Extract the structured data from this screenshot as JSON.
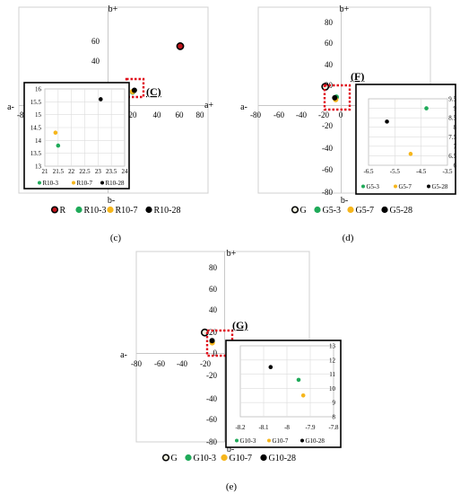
{
  "colors": {
    "R": "#c0141c",
    "G": "#f0f0e0",
    "day3": "#1faa59",
    "day7": "#f6b61c",
    "day28": "#000000",
    "callout": "#e0101c"
  },
  "chart_data": [
    {
      "id": "c",
      "type": "scatter",
      "caption": "(c)",
      "callout": "(C)",
      "axis_labels": {
        "top": "b+",
        "bottom": "b-",
        "left": "a-",
        "right": "a+"
      },
      "xlim": [
        -80,
        80
      ],
      "ylim": [
        -80,
        80
      ],
      "x_ticks": [
        "-80",
        "20",
        "40",
        "60",
        "80"
      ],
      "y_ticks": [
        "60",
        "40"
      ],
      "series": [
        {
          "name": "R",
          "key": "R",
          "x": [
            64
          ],
          "y": [
            58
          ]
        },
        {
          "name": "R10-3",
          "key": "day3",
          "x": [
            21.5
          ],
          "y": [
            13.8
          ]
        },
        {
          "name": "R10-7",
          "key": "day7",
          "x": [
            21.4
          ],
          "y": [
            14.3
          ]
        },
        {
          "name": "R10-28",
          "key": "day28",
          "x": [
            23.1
          ],
          "y": [
            15.6
          ]
        }
      ],
      "inset": {
        "xlim": [
          21,
          24
        ],
        "ylim": [
          13,
          16
        ],
        "x_ticks": [
          "21",
          "21.5",
          "22",
          "22.5",
          "23",
          "23.5",
          "24"
        ],
        "y_ticks": [
          "16",
          "15.5",
          "15",
          "14.5",
          "14",
          "13.5",
          "13"
        ],
        "series": [
          {
            "name": "R10-3",
            "key": "day3",
            "x": [
              21.5
            ],
            "y": [
              13.8
            ]
          },
          {
            "name": "R10-7",
            "key": "day7",
            "x": [
              21.4
            ],
            "y": [
              14.3
            ]
          },
          {
            "name": "R10-28",
            "key": "day28",
            "x": [
              23.1
            ],
            "y": [
              15.6
            ]
          }
        ]
      }
    },
    {
      "id": "d",
      "type": "scatter",
      "caption": "(d)",
      "callout": "(F)",
      "axis_labels": {
        "top": "b+",
        "bottom": "b-",
        "left": "a-",
        "right": ""
      },
      "xlim": [
        -80,
        80
      ],
      "ylim": [
        -80,
        80
      ],
      "x_ticks": [
        "-80",
        "-60",
        "-40",
        "-20",
        "0"
      ],
      "y_ticks": [
        "80",
        "60",
        "40",
        "20",
        "-20",
        "-40",
        "-60",
        "-80"
      ],
      "series": [
        {
          "name": "G",
          "key": "G",
          "x": [
            -15
          ],
          "y": [
            19
          ]
        },
        {
          "name": "G5-3",
          "key": "day3",
          "x": [
            -4.3
          ],
          "y": [
            9
          ]
        },
        {
          "name": "G5-7",
          "key": "day7",
          "x": [
            -4.9
          ],
          "y": [
            6.6
          ]
        },
        {
          "name": "G5-28",
          "key": "day28",
          "x": [
            -5.8
          ],
          "y": [
            8.3
          ]
        }
      ],
      "inset": {
        "xlim": [
          -6.5,
          -3.5
        ],
        "ylim": [
          6,
          9.5
        ],
        "x_ticks": [
          "-6.5",
          "-5.5",
          "-4.5",
          "-3.5"
        ],
        "y_ticks": [
          "9.5",
          "9",
          "8.5",
          "8",
          "7.5",
          "7",
          "6.5",
          "6"
        ],
        "series": [
          {
            "name": "G5-3",
            "key": "day3",
            "x": [
              -4.3
            ],
            "y": [
              9
            ]
          },
          {
            "name": "G5-7",
            "key": "day7",
            "x": [
              -4.9
            ],
            "y": [
              6.6
            ]
          },
          {
            "name": "G5-28",
            "key": "day28",
            "x": [
              -5.8
            ],
            "y": [
              8.3
            ]
          }
        ]
      }
    },
    {
      "id": "e",
      "type": "scatter",
      "caption": "(e)",
      "callout": "(G)",
      "axis_labels": {
        "top": "b+",
        "bottom": "b-",
        "left": "a-",
        "right": ""
      },
      "xlim": [
        -80,
        80
      ],
      "ylim": [
        -80,
        80
      ],
      "x_ticks": [
        "-80",
        "-60",
        "-40",
        "-20",
        "0"
      ],
      "y_ticks": [
        "80",
        "60",
        "40",
        "20",
        "0",
        "-20",
        "-40",
        "-60",
        "-80"
      ],
      "series": [
        {
          "name": "G",
          "key": "G",
          "x": [
            -15
          ],
          "y": [
            19
          ]
        },
        {
          "name": "G10-3",
          "key": "day3",
          "x": [
            -7.95
          ],
          "y": [
            10.6
          ]
        },
        {
          "name": "G10-7",
          "key": "day7",
          "x": [
            -7.93
          ],
          "y": [
            9.5
          ]
        },
        {
          "name": "G10-28",
          "key": "day28",
          "x": [
            -8.07
          ],
          "y": [
            11.5
          ]
        }
      ],
      "inset": {
        "xlim": [
          -8.2,
          -7.8
        ],
        "ylim": [
          8,
          13
        ],
        "x_ticks": [
          "-8.2",
          "-8.1",
          "-8",
          "-7.9",
          "-7.8"
        ],
        "y_ticks": [
          "13",
          "12",
          "11",
          "10",
          "9",
          "8"
        ],
        "series": [
          {
            "name": "G10-3",
            "key": "day3",
            "x": [
              -7.95
            ],
            "y": [
              10.6
            ]
          },
          {
            "name": "G10-7",
            "key": "day7",
            "x": [
              -7.93
            ],
            "y": [
              9.5
            ]
          },
          {
            "name": "G10-28",
            "key": "day28",
            "x": [
              -8.07
            ],
            "y": [
              11.5
            ]
          }
        ]
      }
    }
  ]
}
